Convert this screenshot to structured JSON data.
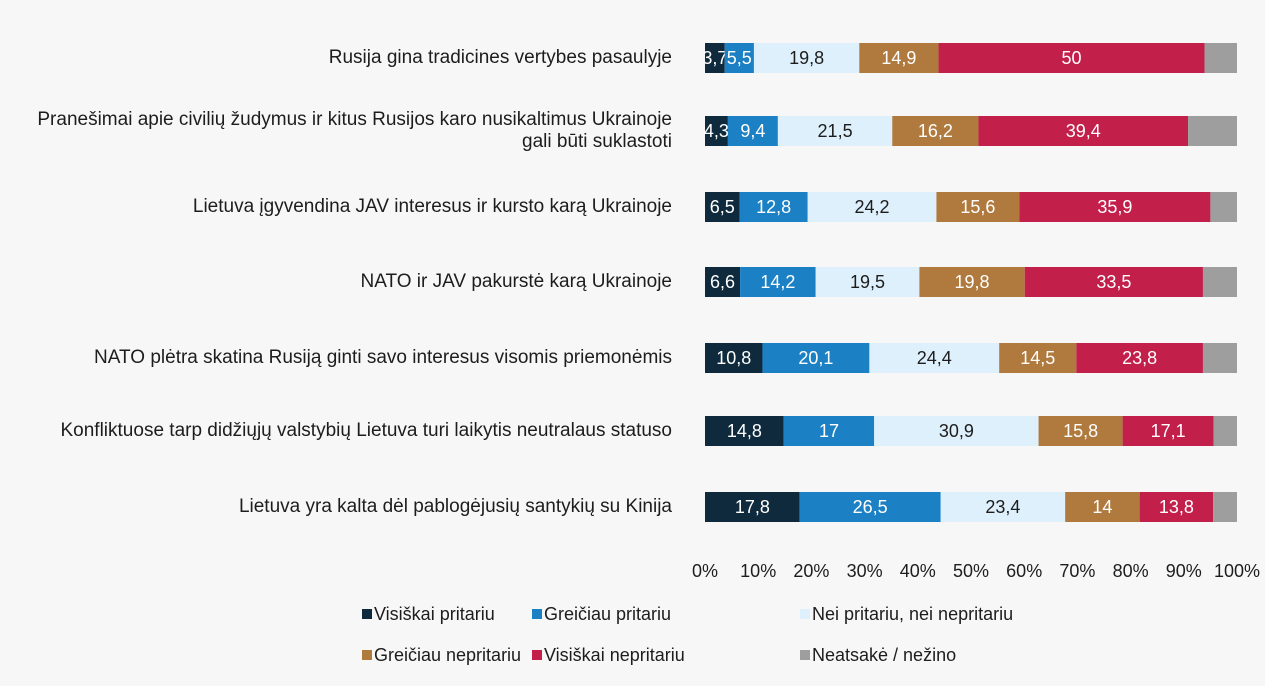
{
  "chart_data": {
    "type": "stacked_bar_horizontal",
    "categories": [
      "Rusija gina tradicines vertybes pasaulyje",
      "Pranešimai apie civilių žudymus ir kitus Rusijos karo nusikaltimus Ukrainoje gali būti suklastoti",
      "Lietuva įgyvendina JAV interesus ir kursto karą Ukrainoje",
      "NATO ir JAV pakurstė karą Ukrainoje",
      "NATO plėtra skatina Rusiją ginti savo interesus visomis priemonėmis",
      "Konfliktuose tarp didžiųjų valstybių Lietuva turi laikytis neutralaus statuso",
      "Lietuva yra kalta dėl pablogėjusių santykių su Kinija"
    ],
    "series": [
      {
        "name": "Visiškai pritariu",
        "color": "#0e2a3c",
        "values": [
          3.7,
          4.3,
          6.5,
          6.6,
          10.8,
          14.8,
          17.8
        ],
        "value_labels": [
          "3,7",
          "4,3",
          "6,5",
          "6,6",
          "10,8",
          "14,8",
          "17,8"
        ]
      },
      {
        "name": "Greičiau pritariu",
        "color": "#1b80c4",
        "values": [
          5.5,
          9.4,
          12.8,
          14.2,
          20.1,
          17,
          26.5
        ],
        "value_labels": [
          "5,5",
          "9,4",
          "12,8",
          "14,2",
          "20,1",
          "17",
          "26,5"
        ]
      },
      {
        "name": "Nei pritariu, nei nepritariu",
        "color": "#def0fb",
        "values": [
          19.8,
          21.5,
          24.2,
          19.5,
          24.4,
          30.9,
          23.4
        ],
        "value_labels": [
          "19,8",
          "21,5",
          "24,2",
          "19,5",
          "24,4",
          "30,9",
          "23,4"
        ]
      },
      {
        "name": "Greičiau nepritariu",
        "color": "#b07a3f",
        "values": [
          14.9,
          16.2,
          15.6,
          19.8,
          14.5,
          15.8,
          14
        ],
        "value_labels": [
          "14,9",
          "16,2",
          "15,6",
          "19,8",
          "14,5",
          "15,8",
          "14"
        ]
      },
      {
        "name": "Visiškai nepritariu",
        "color": "#c21f4b",
        "values": [
          50,
          39.4,
          35.9,
          33.5,
          23.8,
          17.1,
          13.8
        ],
        "value_labels": [
          "50",
          "39,4",
          "35,9",
          "33,5",
          "23,8",
          "17,1",
          "13,8"
        ]
      },
      {
        "name": "Neatsakė / nežino",
        "color": "#9e9e9e",
        "values": [
          6.1,
          9.2,
          5.0,
          6.4,
          6.4,
          4.4,
          4.5
        ]
      }
    ],
    "xlim": [
      0,
      100
    ],
    "xticks": [
      {
        "value": 0,
        "label": "0%"
      },
      {
        "value": 10,
        "label": "10%"
      },
      {
        "value": 20,
        "label": "20%"
      },
      {
        "value": 30,
        "label": "30%"
      },
      {
        "value": 40,
        "label": "40%"
      },
      {
        "value": 50,
        "label": "50%"
      },
      {
        "value": 60,
        "label": "60%"
      },
      {
        "value": 70,
        "label": "70%"
      },
      {
        "value": 80,
        "label": "80%"
      },
      {
        "value": 90,
        "label": "90%"
      },
      {
        "value": 100,
        "label": "100%"
      }
    ]
  }
}
